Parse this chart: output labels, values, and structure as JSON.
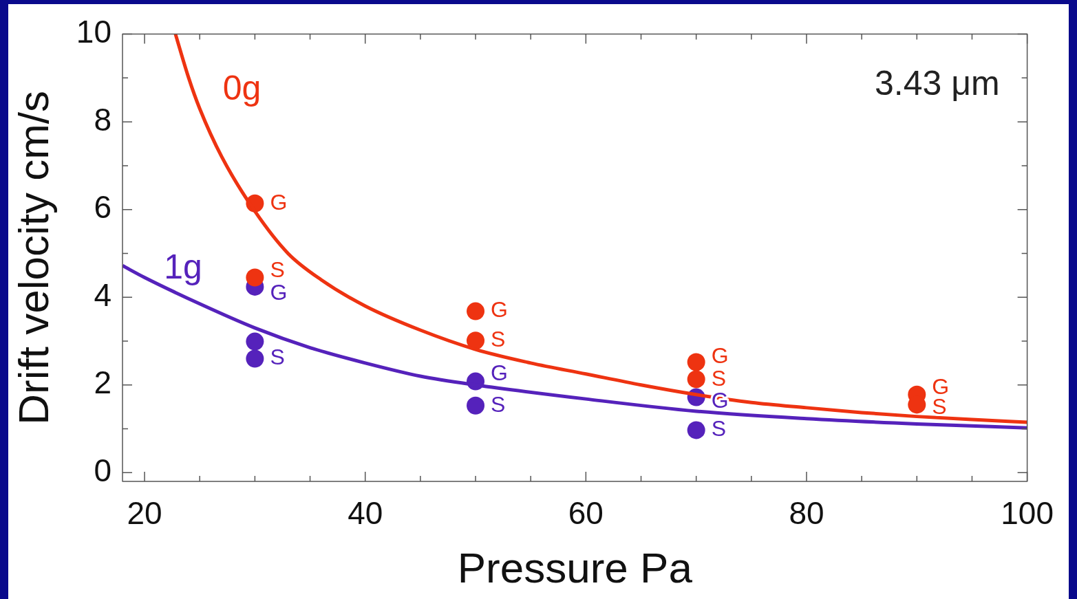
{
  "chart_data": {
    "type": "scatter",
    "xlabel": "Pressure Pa",
    "ylabel": "Drift velocity cm/s",
    "xlim": [
      18,
      100
    ],
    "ylim": [
      -0.2,
      10
    ],
    "xticks": [
      20,
      {
        "value": 25,
        "label": null
      },
      {
        "value": 30,
        "label": null
      },
      {
        "value": 35,
        "label": null
      },
      40,
      {
        "value": 45,
        "label": null
      },
      {
        "value": 50,
        "label": null
      },
      {
        "value": 55,
        "label": null
      },
      60,
      {
        "value": 65,
        "label": null
      },
      {
        "value": 70,
        "label": null
      },
      {
        "value": 75,
        "label": null
      },
      80,
      {
        "value": 85,
        "label": null
      },
      {
        "value": 90,
        "label": null
      },
      {
        "value": 95,
        "label": null
      },
      100
    ],
    "yticks": [
      0,
      {
        "value": 1,
        "label": null
      },
      2,
      {
        "value": 3,
        "label": null
      },
      4,
      {
        "value": 5,
        "label": null
      },
      6,
      {
        "value": 7,
        "label": null
      },
      8,
      {
        "value": 9,
        "label": null
      },
      10
    ],
    "grid": false,
    "legend": false,
    "marker": "circle",
    "annotations": [
      "3.43 μm"
    ],
    "series": [
      {
        "type": "line",
        "name": "0g",
        "color": "#ee3311",
        "marker": "none",
        "line_style": "solid",
        "x": [
          22.8,
          24,
          25,
          27,
          30,
          33,
          36,
          40,
          45,
          50,
          55,
          60,
          65,
          70,
          75,
          80,
          85,
          90,
          95,
          100
        ],
        "values": [
          10,
          9.0,
          8.3,
          7.2,
          5.96,
          5.0,
          4.4,
          3.8,
          3.25,
          2.81,
          2.5,
          2.25,
          2.0,
          1.78,
          1.6,
          1.48,
          1.37,
          1.28,
          1.21,
          1.15
        ]
      },
      {
        "type": "line",
        "name": "1g",
        "color": "#5522bb",
        "marker": "none",
        "line_style": "solid",
        "x": [
          18,
          20,
          25,
          30,
          35,
          40,
          45,
          50,
          60,
          70,
          80,
          90,
          100
        ],
        "values": [
          4.72,
          4.45,
          3.85,
          3.3,
          2.85,
          2.5,
          2.2,
          2.0,
          1.68,
          1.4,
          1.23,
          1.11,
          1.02
        ]
      },
      {
        "color": "#ee3311",
        "x": [
          30,
          30,
          50,
          50,
          70,
          70,
          90,
          90
        ],
        "values": [
          6.14,
          4.45,
          3.68,
          3.01,
          2.52,
          2.13,
          1.78,
          1.55
        ],
        "value_labels": [
          "G",
          "S",
          "G",
          "S",
          "G",
          "S",
          "G",
          "S"
        ]
      },
      {
        "color": "#5522bb",
        "x": [
          30,
          30,
          30,
          50,
          50,
          70,
          70
        ],
        "values": [
          4.24,
          2.99,
          2.6,
          2.08,
          1.53,
          1.72,
          0.97
        ],
        "value_labels": [
          "G",
          null,
          "S",
          "G",
          "S",
          "G",
          "S"
        ]
      }
    ]
  }
}
